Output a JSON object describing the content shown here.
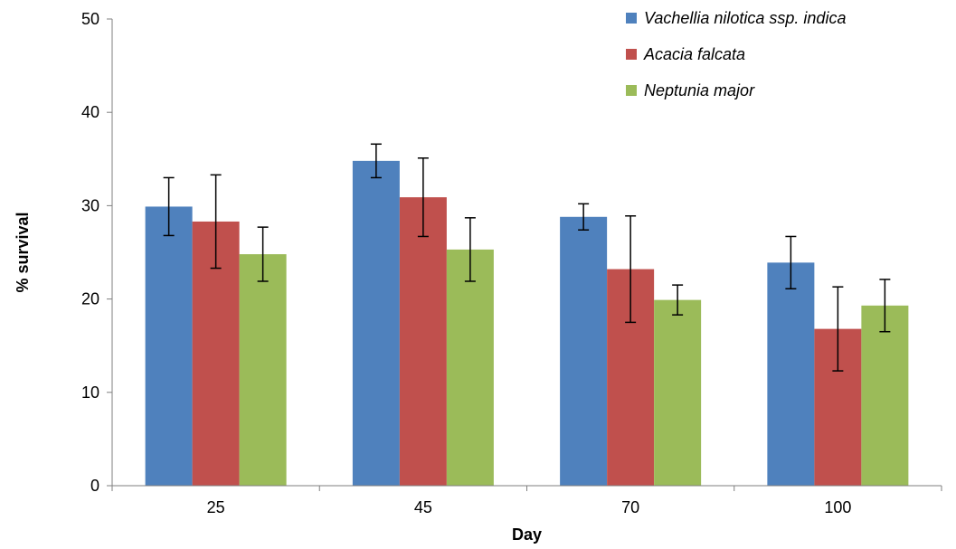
{
  "chart_data": {
    "type": "bar",
    "xlabel": "Day",
    "ylabel": "% survival",
    "ylim": [
      0,
      50
    ],
    "yticks": [
      0,
      10,
      20,
      30,
      40,
      50
    ],
    "categories": [
      "25",
      "45",
      "70",
      "100"
    ],
    "series": [
      {
        "name": "Vachellia nilotica ssp. indica",
        "color": "#4F81BD",
        "values": [
          29.9,
          34.8,
          28.8,
          23.9
        ],
        "errors": [
          3.1,
          1.8,
          1.4,
          2.8
        ]
      },
      {
        "name": "Acacia falcata",
        "color": "#C0504D",
        "values": [
          28.3,
          30.9,
          23.2,
          16.8
        ],
        "errors": [
          5.0,
          4.2,
          5.7,
          4.5
        ]
      },
      {
        "name": "Neptunia major",
        "color": "#9BBB59",
        "values": [
          24.8,
          25.3,
          19.9,
          19.3
        ],
        "errors": [
          2.9,
          3.4,
          1.6,
          2.8
        ]
      }
    ],
    "legend_position": "top-right",
    "grid": false
  }
}
